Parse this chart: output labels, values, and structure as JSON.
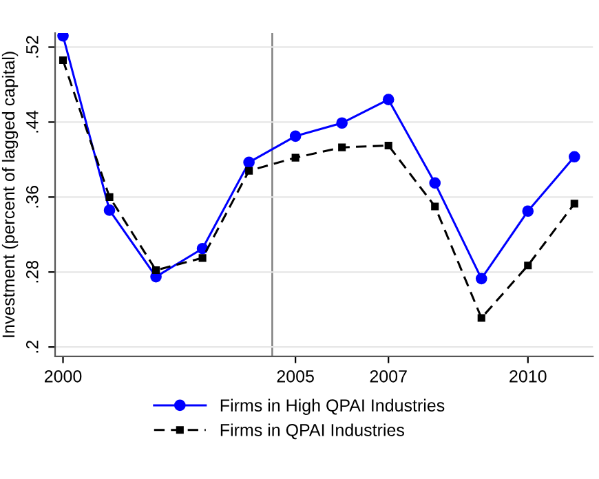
{
  "chart_data": {
    "type": "line",
    "ylabel": "Investment (percent of lagged capital)",
    "x": [
      2000,
      2001,
      2002,
      2003,
      2004,
      2005,
      2006,
      2007,
      2008,
      2009,
      2010,
      2011
    ],
    "series": [
      {
        "name": "Firms in High QPAI Industries",
        "color": "#0000ff",
        "marker": "circle",
        "line_style": "solid",
        "values": [
          0.532,
          0.346,
          0.275,
          0.305,
          0.397,
          0.425,
          0.439,
          0.464,
          0.375,
          0.273,
          0.345,
          0.403
        ]
      },
      {
        "name": "Firms in QPAI Industries",
        "color": "#000000",
        "marker": "square",
        "line_style": "dashed",
        "values": [
          0.506,
          0.36,
          0.282,
          0.295,
          0.388,
          0.402,
          0.413,
          0.415,
          0.35,
          0.231,
          0.287,
          0.353
        ]
      }
    ],
    "xlim": [
      1999.83,
      2011.4
    ],
    "ylim": [
      0.19,
      0.535
    ],
    "xticks": [
      2000,
      2005,
      2007,
      2010
    ],
    "yticks": [
      {
        "value": 0.2,
        "label": ".2"
      },
      {
        "value": 0.28,
        "label": ".28"
      },
      {
        "value": 0.36,
        "label": ".36"
      },
      {
        "value": 0.44,
        "label": ".44"
      },
      {
        "value": 0.52,
        "label": ".52"
      }
    ],
    "ref_lines": [
      {
        "axis": "x",
        "value": 2004.5,
        "color": "#808080"
      }
    ],
    "grid": "y",
    "legend": "bottom"
  }
}
